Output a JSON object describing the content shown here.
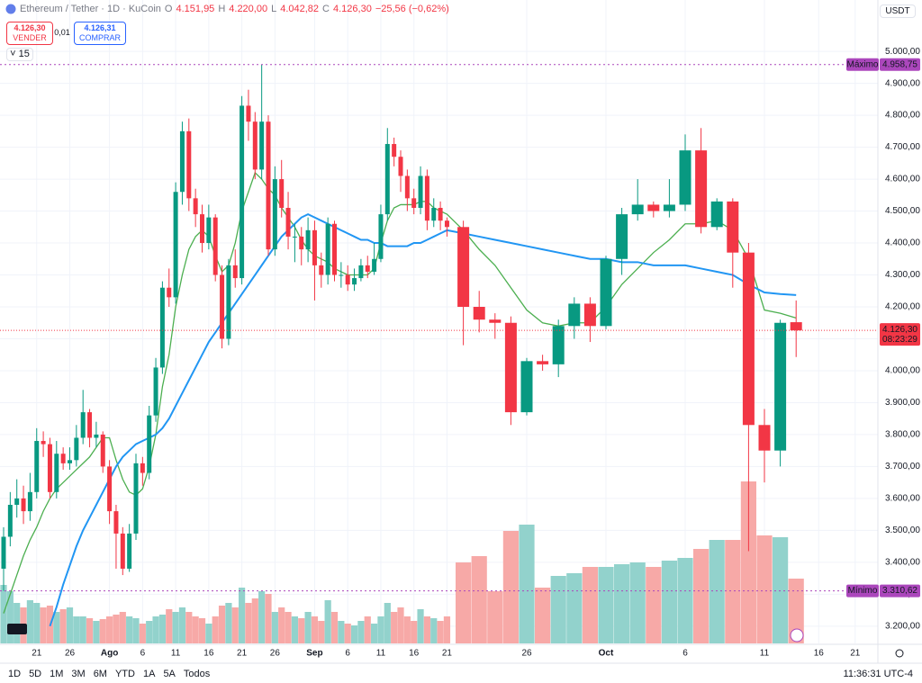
{
  "header": {
    "symbol": "Ethereum / Tether · 1D · KuCoin",
    "o_label": "O",
    "o": "4.151,95",
    "h_label": "H",
    "h": "4.220,00",
    "l_label": "L",
    "l": "4.042,82",
    "c_label": "C",
    "c": "4.126,30",
    "change": "−25,56 (−0,62%)",
    "sell_price": "4.126,30",
    "sell": "VENDER",
    "spread": "0,01",
    "buy_price": "4.126,31",
    "buy": "COMPRAR",
    "indicators": "15",
    "currency": "USDT"
  },
  "toolbar": {
    "ranges": [
      "1D",
      "5D",
      "1M",
      "3M",
      "6M",
      "YTD",
      "1A",
      "5A",
      "Todos"
    ],
    "clock": "11:36:31 UTC-4"
  },
  "chart_data": {
    "type": "candlestick",
    "grid": true,
    "up_color": "#089981",
    "down_color": "#f23645",
    "volume_up_color": "#92d2cc",
    "volume_down_color": "#f7a9a7",
    "ylim": [
      3146,
      5161
    ],
    "yticks": [
      {
        "value": 3200,
        "label": "3.200,00"
      },
      {
        "value": 3300,
        "label": "3.300,00"
      },
      {
        "value": 3400,
        "label": "3.400,00"
      },
      {
        "value": 3500,
        "label": "3.500,00"
      },
      {
        "value": 3600,
        "label": "3.600,00"
      },
      {
        "value": 3700,
        "label": "3.700,00"
      },
      {
        "value": 3800,
        "label": "3.800,00"
      },
      {
        "value": 3900,
        "label": "3.900,00"
      },
      {
        "value": 4000,
        "label": "4.000,00"
      },
      {
        "value": 4100,
        "label": "4.100,00"
      },
      {
        "value": 4200,
        "label": "4.200,00"
      },
      {
        "value": 4300,
        "label": "4.300,00"
      },
      {
        "value": 4400,
        "label": "4.400,00"
      },
      {
        "value": 4500,
        "label": "4.500,00"
      },
      {
        "value": 4600,
        "label": "4.600,00"
      },
      {
        "value": 4700,
        "label": "4.700,00"
      },
      {
        "value": 4800,
        "label": "4.800,00"
      },
      {
        "value": 4900,
        "label": "4.900,00"
      },
      {
        "value": 5000,
        "label": "5.000,00"
      }
    ],
    "categories": [
      null,
      null,
      null,
      null,
      null,
      "21",
      null,
      null,
      null,
      null,
      "26",
      null,
      null,
      null,
      null,
      null,
      "Ago",
      null,
      null,
      null,
      null,
      "6",
      null,
      null,
      null,
      null,
      "11",
      null,
      null,
      null,
      null,
      "16",
      null,
      null,
      null,
      null,
      "21",
      null,
      null,
      null,
      null,
      "26",
      null,
      null,
      null,
      null,
      null,
      "Sep",
      null,
      null,
      null,
      null,
      "6",
      null,
      null,
      null,
      null,
      "11",
      null,
      null,
      null,
      null,
      "16",
      null,
      null,
      null,
      null,
      "21",
      null,
      null,
      null,
      null,
      "26",
      null,
      null,
      null,
      null,
      "Oct",
      null,
      null,
      null,
      null,
      "6",
      null,
      null,
      null,
      null,
      "11",
      null,
      null,
      null,
      null,
      "16",
      null,
      null,
      null,
      null,
      "21"
    ],
    "open": [
      3380,
      3480,
      3580,
      3600,
      3560,
      3620,
      3780,
      3770,
      3620,
      3740,
      3710,
      3720,
      3790,
      3870,
      3790,
      3800,
      3700,
      3560,
      3490,
      3380,
      3490,
      3710,
      3680,
      3860,
      4010,
      4260,
      4230,
      4560,
      4750,
      4540,
      4490,
      4400,
      4480,
      4300,
      4100,
      4330,
      4290,
      4830,
      4780,
      4630,
      4780,
      4380,
      4600,
      4510,
      4420,
      4420,
      4380,
      4440,
      4330,
      4300,
      4460,
      4300,
      4300,
      4270,
      4290,
      4330,
      4310,
      4350,
      4490,
      4710,
      4670,
      4610,
      4540,
      4510,
      4610,
      4470,
      4510,
      4470,
      4450,
      4200,
      4160,
      4150,
      3870,
      4030,
      4020,
      4140,
      4210,
      4140,
      4350,
      4490,
      4520,
      4500,
      4520,
      4690,
      4450,
      4530,
      4370,
      3830,
      3750,
      4151.95,
      null,
      null,
      null,
      null,
      null,
      null,
      null,
      null
    ],
    "high": [
      3510,
      3620,
      3660,
      3640,
      3680,
      3820,
      3810,
      3790,
      3780,
      3760,
      3760,
      3830,
      3940,
      3880,
      3840,
      3810,
      3720,
      3580,
      3510,
      3520,
      3740,
      3730,
      3890,
      4040,
      4280,
      4320,
      4590,
      4780,
      4790,
      4570,
      4520,
      4520,
      4490,
      4330,
      4350,
      4380,
      4860,
      4880,
      4810,
      4958.75,
      4800,
      4640,
      4660,
      4560,
      4460,
      4450,
      4480,
      4470,
      4370,
      4480,
      4470,
      4340,
      4330,
      4320,
      4350,
      4360,
      4400,
      4520,
      4760,
      4730,
      4690,
      4630,
      4570,
      4640,
      4630,
      4540,
      4530,
      4480,
      4470,
      4250,
      4180,
      4170,
      4040,
      4050,
      4160,
      4230,
      4230,
      4360,
      4510,
      4600,
      4530,
      4600,
      4740,
      4760,
      4540,
      4540,
      4400,
      3880,
      4160,
      4220,
      null,
      null,
      null,
      null,
      null,
      null,
      null,
      null
    ],
    "low": [
      3310.62,
      3450,
      3540,
      3520,
      3530,
      3600,
      3730,
      3600,
      3600,
      3690,
      3690,
      3700,
      3770,
      3760,
      3760,
      3680,
      3520,
      3380,
      3360,
      3370,
      3470,
      3640,
      3660,
      3840,
      3990,
      4200,
      4210,
      4520,
      4500,
      4450,
      4370,
      4380,
      4280,
      4070,
      4080,
      4260,
      4270,
      4720,
      4600,
      4600,
      4360,
      4360,
      4480,
      4380,
      4340,
      4330,
      4340,
      4220,
      4260,
      4270,
      4280,
      4260,
      4250,
      4250,
      4280,
      4290,
      4300,
      4340,
      4470,
      4640,
      4560,
      4500,
      4490,
      4490,
      4440,
      4450,
      4440,
      4420,
      4080,
      4120,
      4100,
      3830,
      3860,
      4000,
      3980,
      4100,
      4090,
      4130,
      4300,
      4470,
      4480,
      4480,
      4500,
      4430,
      4440,
      4260,
      3435,
      3650,
      3700,
      4042.82,
      null,
      null,
      null,
      null,
      null,
      null,
      null,
      null
    ],
    "close": [
      3480,
      3580,
      3600,
      3560,
      3620,
      3780,
      3770,
      3620,
      3740,
      3710,
      3720,
      3790,
      3870,
      3790,
      3800,
      3700,
      3560,
      3490,
      3380,
      3490,
      3710,
      3680,
      3860,
      4010,
      4260,
      4230,
      4560,
      4750,
      4540,
      4490,
      4400,
      4480,
      4300,
      4100,
      4330,
      4290,
      4830,
      4780,
      4630,
      4780,
      4380,
      4600,
      4510,
      4420,
      4420,
      4380,
      4440,
      4330,
      4300,
      4460,
      4300,
      4300,
      4270,
      4290,
      4330,
      4310,
      4350,
      4490,
      4710,
      4670,
      4610,
      4540,
      4510,
      4610,
      4470,
      4510,
      4470,
      4450,
      4200,
      4160,
      4150,
      3870,
      4030,
      4020,
      4140,
      4210,
      4140,
      4350,
      4490,
      4520,
      4500,
      4520,
      4690,
      4450,
      4530,
      4370,
      3830,
      3750,
      4150,
      4126.3,
      null,
      null,
      null,
      null,
      null,
      null,
      null,
      null
    ],
    "volume": [
      65,
      58,
      45,
      40,
      48,
      45,
      40,
      42,
      35,
      38,
      40,
      30,
      30,
      28,
      25,
      27,
      30,
      32,
      35,
      30,
      28,
      22,
      25,
      30,
      32,
      38,
      35,
      40,
      35,
      30,
      28,
      22,
      30,
      42,
      45,
      40,
      62,
      45,
      50,
      58,
      55,
      35,
      40,
      35,
      30,
      28,
      35,
      30,
      25,
      48,
      35,
      25,
      22,
      20,
      25,
      30,
      22,
      30,
      45,
      35,
      40,
      30,
      25,
      38,
      30,
      28,
      25,
      30,
      90,
      97,
      58,
      125,
      132,
      62,
      75,
      78,
      85,
      85,
      88,
      90,
      85,
      92,
      95,
      105,
      115,
      115,
      180,
      120,
      118,
      72,
      null,
      null,
      null,
      null,
      null,
      null,
      null,
      null
    ],
    "series": [
      {
        "color": "#4caf50",
        "values": [
          3240,
          3300,
          3360,
          3420,
          3470,
          3510,
          3560,
          3600,
          3630,
          3650,
          3670,
          3690,
          3710,
          3730,
          3760,
          3790,
          3790,
          3720,
          3660,
          3620,
          3610,
          3630,
          3700,
          3800,
          3950,
          4050,
          4200,
          4300,
          4380,
          4420,
          4440,
          4420,
          4360,
          4310,
          4330,
          4400,
          4500,
          4560,
          4620,
          4600,
          4570,
          4550,
          4510,
          4480,
          4450,
          4410,
          4380,
          4360,
          4350,
          4340,
          4320,
          4310,
          4300,
          4300,
          4300,
          4300,
          4320,
          4400,
          4470,
          4510,
          4520,
          4520,
          4520,
          4530,
          4530,
          4510,
          4500,
          4490,
          4440,
          4380,
          4330,
          4260,
          4190,
          4150,
          4140,
          4150,
          4150,
          4200,
          4270,
          4320,
          4370,
          4410,
          4460,
          4460,
          4470,
          4440,
          4350,
          4190,
          4180,
          4165,
          null,
          null,
          null,
          null,
          null,
          null,
          null,
          null
        ]
      },
      {
        "color": "#2196f3",
        "values": [
          null,
          null,
          null,
          null,
          null,
          null,
          null,
          3200,
          3260,
          3330,
          3390,
          3450,
          3500,
          3540,
          3580,
          3620,
          3660,
          3700,
          3730,
          3750,
          3770,
          3780,
          3790,
          3800,
          3820,
          3850,
          3890,
          3930,
          3970,
          4010,
          4050,
          4090,
          4120,
          4150,
          4180,
          4210,
          4240,
          4270,
          4300,
          4330,
          4360,
          4390,
          4420,
          4440,
          4460,
          4480,
          4490,
          4480,
          4470,
          4460,
          4450,
          4440,
          4430,
          4420,
          4410,
          4410,
          4400,
          4400,
          4390,
          4390,
          4390,
          4390,
          4400,
          4400,
          4410,
          4420,
          4430,
          4440,
          4430,
          4420,
          4410,
          4400,
          4390,
          4380,
          4370,
          4360,
          4350,
          4350,
          4340,
          4340,
          4330,
          4330,
          4330,
          4320,
          4310,
          4300,
          4270,
          4245,
          4240,
          4237,
          null,
          null,
          null,
          null,
          null,
          null,
          null,
          null
        ]
      }
    ],
    "max_label": "Máximo",
    "max_price": {
      "value": 4958.75,
      "label": "4.958,75"
    },
    "min_label": "Mínimo",
    "min_price": {
      "value": 3310.62,
      "label": "3.310,62"
    },
    "last_price": {
      "value": 4126.3,
      "label": "4.126,30"
    },
    "countdown": "08:23:29"
  }
}
